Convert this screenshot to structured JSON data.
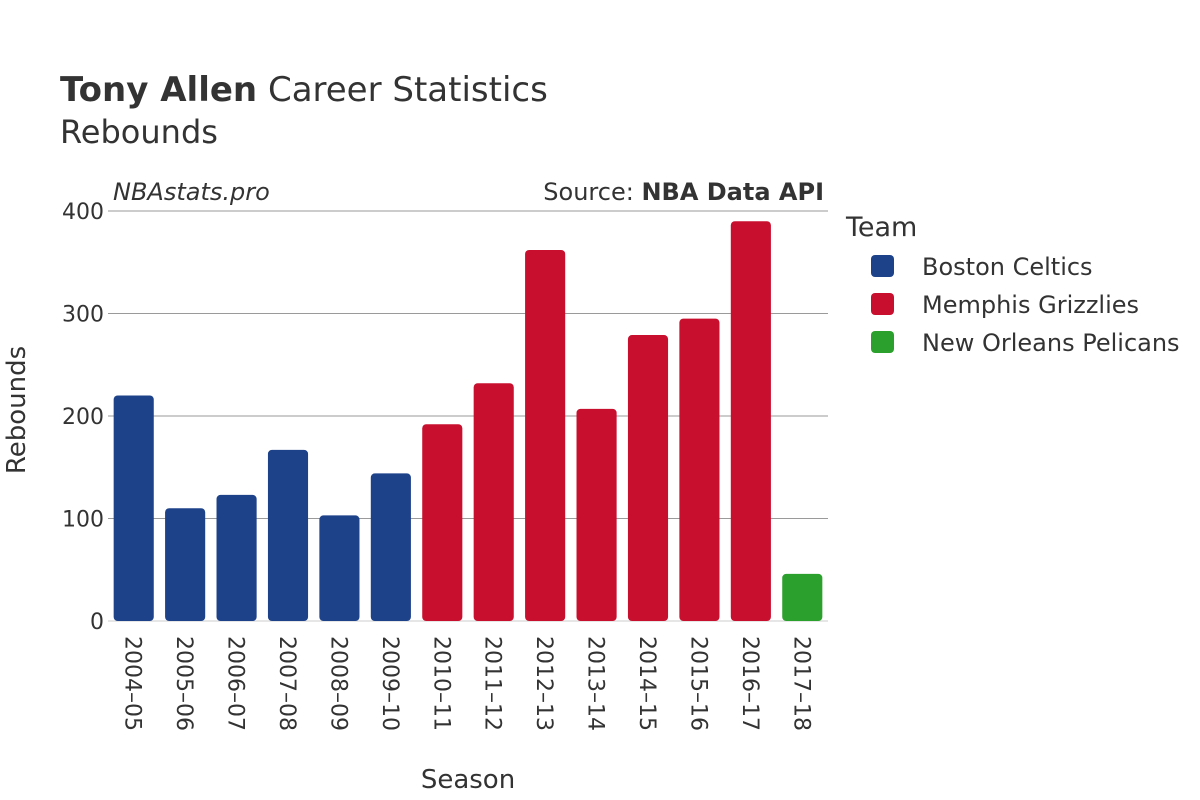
{
  "header": {
    "player_name": "Tony Allen",
    "title_rest": "Career Statistics",
    "subtitle": "Rebounds",
    "watermark": "NBAstats.pro",
    "source_prefix": "Source: ",
    "source_name": "NBA Data API"
  },
  "legend": {
    "title": "Team",
    "items": [
      {
        "label": "Boston Celtics",
        "color": "#1d428a"
      },
      {
        "label": "Memphis Grizzlies",
        "color": "#c8102e"
      },
      {
        "label": "New Orleans Pelicans",
        "color": "#2ca02c"
      }
    ]
  },
  "chart_data": {
    "type": "bar",
    "xlabel": "Season",
    "ylabel": "Rebounds",
    "ylim": [
      0,
      400
    ],
    "yticks": [
      0,
      100,
      200,
      300,
      400
    ],
    "grid": true,
    "legend_position": "right",
    "categories": [
      "2004–05",
      "2005–06",
      "2006–07",
      "2007–08",
      "2008–09",
      "2009–10",
      "2010–11",
      "2011–12",
      "2012–13",
      "2013–14",
      "2014–15",
      "2015–16",
      "2016–17",
      "2017–18"
    ],
    "values": [
      220,
      110,
      123,
      167,
      103,
      144,
      192,
      232,
      362,
      207,
      279,
      295,
      390,
      46
    ],
    "teams": [
      "Boston Celtics",
      "Boston Celtics",
      "Boston Celtics",
      "Boston Celtics",
      "Boston Celtics",
      "Boston Celtics",
      "Memphis Grizzlies",
      "Memphis Grizzlies",
      "Memphis Grizzlies",
      "Memphis Grizzlies",
      "Memphis Grizzlies",
      "Memphis Grizzlies",
      "Memphis Grizzlies",
      "New Orleans Pelicans"
    ]
  }
}
